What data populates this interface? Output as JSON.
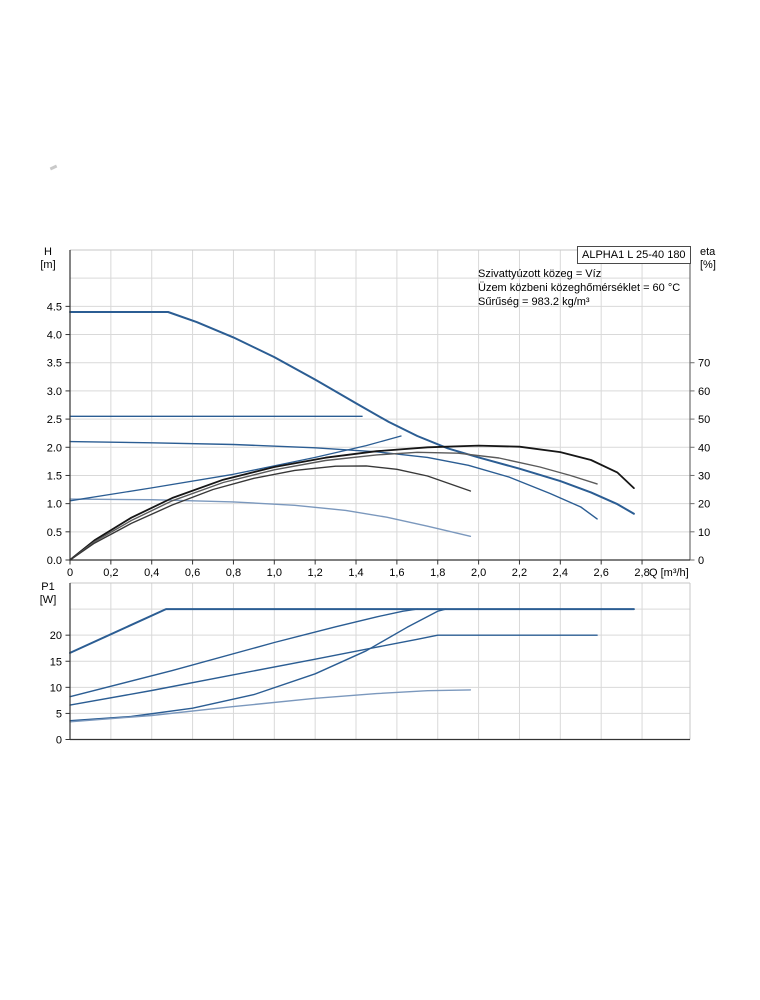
{
  "title_box": {
    "label": "ALPHA1 L 25-40 180"
  },
  "annotation": {
    "line1": "Szivattyúzott közeg = Víz",
    "line2": "Üzem közbeni közeghőmérséklet = 60 °C",
    "line3": "Sűrűség = 983.2 kg/m³"
  },
  "axes": {
    "h_axis": {
      "label_line1": "H",
      "label_line2": "[m]"
    },
    "eta_axis": {
      "label_line1": "eta",
      "label_line2": "[%]"
    },
    "p1_axis": {
      "label_line1": "P1",
      "label_line2": "[W]"
    },
    "q_axis": {
      "unit_label": "Q [m³/h]"
    }
  },
  "colors": {
    "curve_blue": "#2b5d93",
    "curve_blue_light": "#7b98bd",
    "curve_black": "#161616",
    "curve_gray": "#5a5a5a",
    "curve_gray_dark": "#383838",
    "grid": "#d9d9d9",
    "axis_dark": "#333333",
    "axis_light": "#c7c7c7",
    "axis_right": "#6e6e6e",
    "text": "#000000"
  },
  "chart_data": [
    {
      "type": "line",
      "title": "ALPHA1 L 25-40 180",
      "xlabel": "Q [m³/h]",
      "ylabel_left": "H [m]",
      "ylabel_right": "eta [%]",
      "xlim": [
        0,
        3.03
      ],
      "ylim_left": [
        0,
        5.5
      ],
      "ylim_right": [
        0,
        110
      ],
      "grid": true,
      "x_tick_values": [
        0,
        0.2,
        0.4,
        0.6,
        0.8,
        1.0,
        1.2,
        1.4,
        1.6,
        1.8,
        2.0,
        2.2,
        2.4,
        2.6,
        2.8
      ],
      "x_tick_labels": [
        "0",
        "0,2",
        "0,4",
        "0,6",
        "0,8",
        "1,0",
        "1,2",
        "1,4",
        "1,6",
        "1,8",
        "2,0",
        "2,2",
        "2,4",
        "2,6",
        "2,8"
      ],
      "h_tick_values": [
        0,
        0.5,
        1.0,
        1.5,
        2.0,
        2.5,
        3.0,
        3.5,
        4.0,
        4.5
      ],
      "h_tick_labels": [
        "0.0",
        "0.5",
        "1.0",
        "1.5",
        "2.0",
        "2.5",
        "3.0",
        "3.5",
        "4.0",
        "4.5"
      ],
      "eta_tick_values": [
        0,
        10,
        20,
        30,
        40,
        50,
        60,
        70
      ],
      "eta_tick_labels": [
        "0",
        "10",
        "20",
        "30",
        "40",
        "50",
        "60",
        "70"
      ],
      "series": [
        {
          "name": "speed-III-head",
          "axis": "H",
          "color": "blue",
          "width": 2,
          "points": [
            [
              0,
              4.4
            ],
            [
              0.48,
              4.4
            ],
            [
              0.62,
              4.22
            ],
            [
              0.8,
              3.95
            ],
            [
              1.0,
              3.6
            ],
            [
              1.2,
              3.2
            ],
            [
              1.4,
              2.78
            ],
            [
              1.56,
              2.45
            ],
            [
              1.7,
              2.2
            ],
            [
              1.85,
              1.98
            ],
            [
              2.0,
              1.82
            ],
            [
              2.2,
              1.62
            ],
            [
              2.4,
              1.4
            ],
            [
              2.55,
              1.2
            ],
            [
              2.68,
              0.99
            ],
            [
              2.76,
              0.82
            ]
          ]
        },
        {
          "name": "speed-II-head",
          "axis": "H",
          "color": "blue",
          "width": 1.4,
          "points": [
            [
              0,
              2.1
            ],
            [
              0.4,
              2.08
            ],
            [
              0.8,
              2.05
            ],
            [
              1.2,
              1.99
            ],
            [
              1.5,
              1.92
            ],
            [
              1.75,
              1.82
            ],
            [
              1.95,
              1.68
            ],
            [
              2.15,
              1.47
            ],
            [
              2.35,
              1.18
            ],
            [
              2.5,
              0.94
            ],
            [
              2.58,
              0.73
            ]
          ]
        },
        {
          "name": "speed-I-head",
          "axis": "H",
          "color": "blue_light",
          "width": 1.4,
          "points": [
            [
              0,
              1.08
            ],
            [
              0.4,
              1.07
            ],
            [
              0.8,
              1.03
            ],
            [
              1.1,
              0.97
            ],
            [
              1.35,
              0.88
            ],
            [
              1.55,
              0.76
            ],
            [
              1.75,
              0.6
            ],
            [
              1.96,
              0.42
            ]
          ]
        },
        {
          "name": "constant-pressure-head",
          "axis": "H",
          "color": "blue",
          "width": 1.3,
          "points": [
            [
              0,
              2.55
            ],
            [
              1.43,
              2.55
            ]
          ]
        },
        {
          "name": "proportional-pressure-head",
          "axis": "H",
          "color": "blue",
          "width": 1.3,
          "points": [
            [
              0,
              1.05
            ],
            [
              0.4,
              1.28
            ],
            [
              0.8,
              1.52
            ],
            [
              1.2,
              1.82
            ],
            [
              1.45,
              2.03
            ],
            [
              1.62,
              2.2
            ]
          ]
        },
        {
          "name": "eta-speed-III",
          "axis": "eta",
          "color": "black",
          "width": 1.8,
          "points": [
            [
              0,
              0
            ],
            [
              0.12,
              7
            ],
            [
              0.3,
              15
            ],
            [
              0.5,
              22
            ],
            [
              0.75,
              28.5
            ],
            [
              1.0,
              33
            ],
            [
              1.25,
              36.3
            ],
            [
              1.5,
              38.6
            ],
            [
              1.75,
              40
            ],
            [
              2.0,
              40.6
            ],
            [
              2.2,
              40.2
            ],
            [
              2.4,
              38.3
            ],
            [
              2.55,
              35.5
            ],
            [
              2.68,
              31
            ],
            [
              2.76,
              25.5
            ]
          ]
        },
        {
          "name": "eta-speed-II",
          "axis": "eta",
          "color": "gray",
          "width": 1.4,
          "points": [
            [
              0,
              0
            ],
            [
              0.12,
              6.5
            ],
            [
              0.3,
              14
            ],
            [
              0.5,
              21
            ],
            [
              0.75,
              27.5
            ],
            [
              1.0,
              32
            ],
            [
              1.25,
              35.3
            ],
            [
              1.5,
              37.3
            ],
            [
              1.7,
              38.2
            ],
            [
              1.9,
              37.9
            ],
            [
              2.1,
              36.2
            ],
            [
              2.3,
              33
            ],
            [
              2.45,
              30
            ],
            [
              2.58,
              27
            ]
          ]
        },
        {
          "name": "eta-speed-I",
          "axis": "eta",
          "color": "gray_dark",
          "width": 1.4,
          "points": [
            [
              0,
              0
            ],
            [
              0.12,
              6
            ],
            [
              0.3,
              13
            ],
            [
              0.5,
              19.5
            ],
            [
              0.7,
              25
            ],
            [
              0.9,
              29
            ],
            [
              1.1,
              31.8
            ],
            [
              1.3,
              33.3
            ],
            [
              1.45,
              33.4
            ],
            [
              1.6,
              32.2
            ],
            [
              1.75,
              29.8
            ],
            [
              1.96,
              24.5
            ]
          ]
        }
      ]
    },
    {
      "type": "line",
      "title": "P1 power curves",
      "xlabel": "Q [m³/h]",
      "ylabel": "P1 [W]",
      "xlim": [
        0,
        3.03
      ],
      "ylim": [
        0,
        30
      ],
      "grid": true,
      "p1_tick_values": [
        0,
        5,
        10,
        15,
        20
      ],
      "p1_tick_labels": [
        "0",
        "5",
        "10",
        "15",
        "20"
      ],
      "series": [
        {
          "name": "speed-III-power",
          "color": "blue",
          "width": 2,
          "points": [
            [
              0,
              16.6
            ],
            [
              0.47,
              25
            ],
            [
              2.76,
              25
            ]
          ]
        },
        {
          "name": "speed-II-power",
          "color": "blue",
          "width": 1.4,
          "points": [
            [
              0,
              8.2
            ],
            [
              0.5,
              13.2
            ],
            [
              1.0,
              18.6
            ],
            [
              1.3,
              21.6
            ],
            [
              1.5,
              23.5
            ],
            [
              1.63,
              24.6
            ],
            [
              1.7,
              25
            ]
          ]
        },
        {
          "name": "proportional-pressure-power",
          "color": "blue",
          "width": 1.4,
          "points": [
            [
              0,
              3.6
            ],
            [
              0.3,
              4.4
            ],
            [
              0.6,
              6.0
            ],
            [
              0.9,
              8.6
            ],
            [
              1.2,
              12.6
            ],
            [
              1.45,
              17.0
            ],
            [
              1.65,
              21.5
            ],
            [
              1.8,
              24.6
            ],
            [
              1.84,
              25
            ]
          ]
        },
        {
          "name": "constant-pressure-power",
          "color": "blue",
          "width": 1.4,
          "points": [
            [
              0,
              6.6
            ],
            [
              0.4,
              9.4
            ],
            [
              0.8,
              12.4
            ],
            [
              1.2,
              15.4
            ],
            [
              1.5,
              17.7
            ],
            [
              1.7,
              19.2
            ],
            [
              1.8,
              20
            ],
            [
              2.58,
              20
            ]
          ]
        },
        {
          "name": "speed-I-power",
          "color": "blue_light",
          "width": 1.4,
          "points": [
            [
              0,
              3.4
            ],
            [
              0.4,
              4.6
            ],
            [
              0.8,
              6.3
            ],
            [
              1.2,
              7.9
            ],
            [
              1.5,
              8.8
            ],
            [
              1.75,
              9.35
            ],
            [
              1.96,
              9.5
            ]
          ]
        }
      ]
    }
  ]
}
